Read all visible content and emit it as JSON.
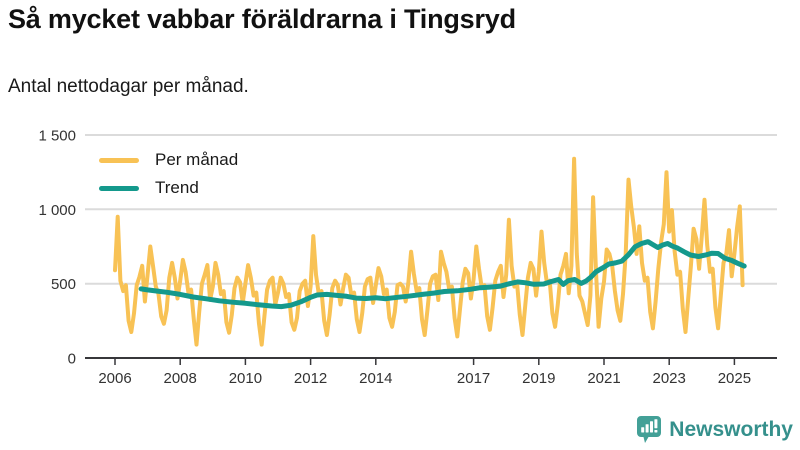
{
  "header": {
    "title": "Så mycket vabbar föräldrarna i Tingsryd",
    "subtitle": "Antal nettodagar per månad."
  },
  "legend": {
    "items": [
      {
        "label": "Per månad",
        "color": "#F8C255"
      },
      {
        "label": "Trend",
        "color": "#14998C"
      }
    ]
  },
  "branding": {
    "name": "Newsworthy",
    "icon": "bar-chart-speech-bubble-icon",
    "text_color": "#35908C",
    "icon_color": "#43A097"
  },
  "colors": {
    "per_manad": "#F8C255",
    "trend": "#14998C",
    "axis_line": "#37373A",
    "grid_line": "#DBDBDB",
    "axis_text": "#333333",
    "title_text": "#111111"
  },
  "chart_data": {
    "type": "line",
    "title": "Så mycket vabbar föräldrarna i Tingsryd",
    "subtitle": "Antal nettodagar per månad.",
    "legend_position": "top-left",
    "grid": "horizontal-only",
    "x_axis": {
      "tick_labels": [
        "2006",
        "2008",
        "2010",
        "2012",
        "2014",
        "2017",
        "2019",
        "2021",
        "2023",
        "2025"
      ],
      "tick_years": [
        2006,
        2008,
        2010,
        2012,
        2014,
        2017,
        2019,
        2021,
        2023,
        2025
      ],
      "range": [
        2006,
        2025.4
      ]
    },
    "y_axis": {
      "tick_labels": [
        "0",
        "500",
        "1 000",
        "1 500"
      ],
      "tick_values": [
        0,
        500,
        1000,
        1500
      ],
      "range": [
        0,
        1500
      ]
    },
    "series": [
      {
        "name": "Per månad",
        "type": "line",
        "color": "#F8C255",
        "frequency": "monthly",
        "start_year": 2006,
        "start_month": 1,
        "values": [
          590,
          950,
          520,
          450,
          490,
          250,
          175,
          300,
          490,
          545,
          620,
          380,
          560,
          750,
          620,
          480,
          430,
          280,
          230,
          320,
          540,
          640,
          540,
          400,
          520,
          660,
          580,
          440,
          460,
          260,
          90,
          310,
          500,
          560,
          625,
          390,
          480,
          640,
          560,
          430,
          450,
          240,
          170,
          290,
          470,
          540,
          510,
          370,
          500,
          625,
          540,
          420,
          440,
          230,
          90,
          280,
          460,
          520,
          540,
          360,
          440,
          540,
          500,
          410,
          430,
          240,
          190,
          270,
          450,
          500,
          520,
          350,
          480,
          820,
          560,
          430,
          450,
          250,
          155,
          290,
          470,
          520,
          490,
          360,
          470,
          560,
          540,
          420,
          440,
          260,
          175,
          300,
          480,
          530,
          540,
          370,
          490,
          605,
          550,
          430,
          460,
          270,
          210,
          310,
          490,
          500,
          480,
          380,
          510,
          715,
          570,
          450,
          470,
          260,
          155,
          320,
          500,
          550,
          560,
          390,
          715,
          640,
          580,
          460,
          480,
          270,
          145,
          330,
          510,
          600,
          570,
          400,
          530,
          750,
          600,
          470,
          490,
          280,
          190,
          340,
          520,
          580,
          620,
          410,
          560,
          930,
          620,
          480,
          500,
          290,
          155,
          350,
          540,
          640,
          600,
          420,
          580,
          850,
          640,
          500,
          520,
          300,
          210,
          360,
          560,
          620,
          700,
          435,
          620,
          1340,
          700,
          420,
          380,
          300,
          222,
          420,
          1081,
          600,
          210,
          400,
          513,
          730,
          700,
          620,
          450,
          320,
          250,
          430,
          700,
          1200,
          1020,
          880,
          700,
          885,
          640,
          520,
          540,
          310,
          200,
          380,
          600,
          780,
          900,
          1250,
          850,
          995,
          720,
          560,
          580,
          330,
          175,
          400,
          620,
          870,
          800,
          600,
          820,
          1065,
          760,
          580,
          600,
          340,
          200,
          420,
          640,
          700,
          860,
          550,
          700,
          880,
          1020,
          490
        ]
      },
      {
        "name": "Trend",
        "type": "line",
        "color": "#14998C",
        "points": [
          [
            2006.8,
            465
          ],
          [
            2007.0,
            458
          ],
          [
            2007.3,
            450
          ],
          [
            2007.6,
            442
          ],
          [
            2008.0,
            428
          ],
          [
            2008.4,
            410
          ],
          [
            2008.8,
            398
          ],
          [
            2009.2,
            385
          ],
          [
            2009.6,
            375
          ],
          [
            2010.0,
            368
          ],
          [
            2010.4,
            358
          ],
          [
            2010.8,
            350
          ],
          [
            2011.1,
            346
          ],
          [
            2011.4,
            355
          ],
          [
            2011.7,
            378
          ],
          [
            2012.0,
            408
          ],
          [
            2012.2,
            424
          ],
          [
            2012.5,
            428
          ],
          [
            2012.8,
            421
          ],
          [
            2013.1,
            415
          ],
          [
            2013.4,
            403
          ],
          [
            2013.7,
            400
          ],
          [
            2014.0,
            405
          ],
          [
            2014.3,
            399
          ],
          [
            2014.7,
            409
          ],
          [
            2015.0,
            416
          ],
          [
            2015.4,
            427
          ],
          [
            2015.8,
            437
          ],
          [
            2016.1,
            447
          ],
          [
            2016.5,
            452
          ],
          [
            2016.9,
            462
          ],
          [
            2017.2,
            473
          ],
          [
            2017.5,
            477
          ],
          [
            2017.8,
            482
          ],
          [
            2018.1,
            500
          ],
          [
            2018.35,
            512
          ],
          [
            2018.6,
            506
          ],
          [
            2018.85,
            496
          ],
          [
            2019.15,
            498
          ],
          [
            2019.4,
            515
          ],
          [
            2019.6,
            528
          ],
          [
            2019.75,
            495
          ],
          [
            2019.9,
            520
          ],
          [
            2020.1,
            528
          ],
          [
            2020.3,
            502
          ],
          [
            2020.45,
            518
          ],
          [
            2020.6,
            545
          ],
          [
            2020.75,
            580
          ],
          [
            2020.95,
            605
          ],
          [
            2021.15,
            632
          ],
          [
            2021.35,
            640
          ],
          [
            2021.55,
            652
          ],
          [
            2021.75,
            695
          ],
          [
            2021.95,
            748
          ],
          [
            2022.15,
            770
          ],
          [
            2022.35,
            782
          ],
          [
            2022.5,
            763
          ],
          [
            2022.65,
            743
          ],
          [
            2022.8,
            760
          ],
          [
            2022.95,
            770
          ],
          [
            2023.1,
            752
          ],
          [
            2023.25,
            740
          ],
          [
            2023.45,
            715
          ],
          [
            2023.65,
            693
          ],
          [
            2023.9,
            683
          ],
          [
            2024.1,
            692
          ],
          [
            2024.3,
            704
          ],
          [
            2024.5,
            703
          ],
          [
            2024.7,
            672
          ],
          [
            2024.9,
            658
          ],
          [
            2025.1,
            637
          ],
          [
            2025.3,
            618
          ]
        ]
      }
    ]
  }
}
